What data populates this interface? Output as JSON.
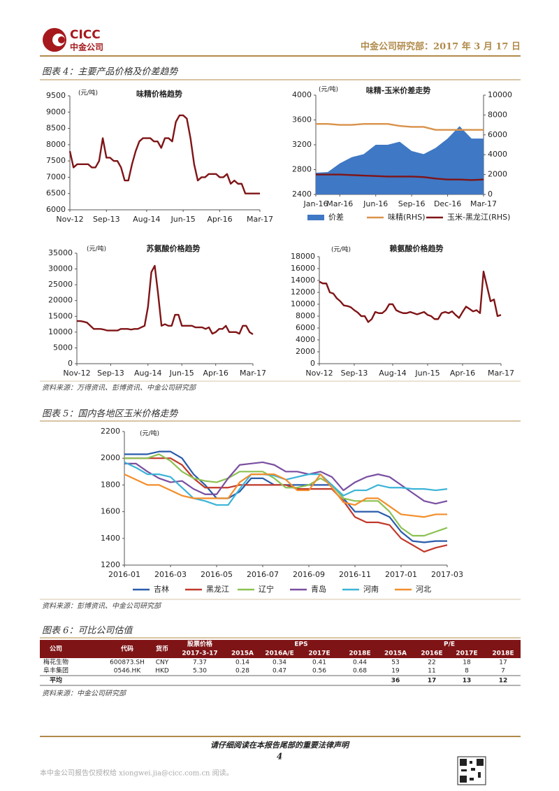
{
  "header": {
    "logo_text": "CICC",
    "logo_cn": "中金公司",
    "date_line": "中金公司研究部：2017 年 3 月 17 日"
  },
  "figure4_title": "图表 4：主要产品价格及价差趋势",
  "figure4_source": "资料来源：万得资讯、彭博资讯、中金公司研究部",
  "figure5_title": "图表 5：国内各地区玉米价格走势",
  "figure5_source": "资料来源：彭博资讯、中金公司研究部",
  "figure6_title": "图表 6：可比公司估值",
  "figure6_source": "资料来源：中金公司研究部",
  "table": {
    "columns": [
      "公司",
      "代码",
      "货币",
      "股票价格",
      "EPS",
      "P/E"
    ],
    "subheader": [
      "2017-3-17",
      "2015A",
      "2016A/E",
      "2017E",
      "2018E",
      "2015A",
      "2016E",
      "2017E",
      "2018E"
    ],
    "rows": [
      [
        "梅花生物",
        "600873.SH",
        "CNY",
        "7.37",
        "0.14",
        "0.34",
        "0.41",
        "0.44",
        "53",
        "22",
        "18",
        "17"
      ],
      [
        "阜丰集团",
        "0546.HK",
        "HKD",
        "5.30",
        "0.28",
        "0.47",
        "0.56",
        "0.68",
        "19",
        "11",
        "8",
        "7"
      ]
    ],
    "average": {
      "label": "平均",
      "values": [
        "36",
        "17",
        "13",
        "12"
      ]
    }
  },
  "footer": {
    "notice": "请仔细阅读在本报告尾部的重要法律声明",
    "page": "4",
    "license": "本中金公司报告仅授权给 xiongwei.jia@cicc.com.cn 阅读。"
  },
  "chart_data": [
    {
      "type": "line",
      "title": "味精价格趋势",
      "unit": "(元/吨)",
      "categories": [
        "Nov-12",
        null,
        null,
        null,
        null,
        null,
        null,
        null,
        null,
        null,
        "Sep-13",
        null,
        null,
        null,
        null,
        null,
        null,
        null,
        null,
        null,
        null,
        "Aug-14",
        null,
        null,
        null,
        null,
        null,
        null,
        null,
        null,
        null,
        "Jun-15",
        null,
        null,
        null,
        null,
        null,
        null,
        null,
        null,
        null,
        "Apr-16",
        null,
        null,
        null,
        null,
        null,
        null,
        null,
        null,
        null,
        null,
        "Mar-17"
      ],
      "series": [
        {
          "name": "味精",
          "color": "#7f1416",
          "values": [
            7800,
            7300,
            7400,
            7400,
            7400,
            7400,
            7300,
            7300,
            7500,
            8200,
            7600,
            7600,
            7500,
            7500,
            7300,
            6900,
            6900,
            7400,
            7800,
            8100,
            8200,
            8200,
            8200,
            8100,
            8100,
            7900,
            8200,
            8200,
            8100,
            8700,
            8900,
            8900,
            8800,
            8200,
            7400,
            6900,
            7000,
            7000,
            7100,
            7100,
            7100,
            7000,
            7000,
            7100,
            6800,
            6900,
            6800,
            6800,
            6500,
            6500,
            6500,
            6500,
            6500
          ]
        }
      ],
      "ylim": [
        6000,
        9500
      ],
      "yticks": [
        6000,
        6500,
        7000,
        7500,
        8000,
        8500,
        9000,
        9500
      ]
    },
    {
      "type": "line",
      "title": "味精-玉米价差走势",
      "unit": "(元/吨)",
      "legend": "bottom",
      "categories": [
        "Jan-16",
        null,
        "Mar-16",
        null,
        null,
        "Jun-16",
        null,
        null,
        "Sep-16",
        null,
        null,
        "Dec-16",
        null,
        null,
        "Mar-17"
      ],
      "series": [
        {
          "name": "价差",
          "type": "area",
          "color": "#3f78c4",
          "values": [
            2750,
            2760,
            2900,
            3000,
            3050,
            3200,
            3200,
            3250,
            3100,
            3050,
            3150,
            3300,
            3500,
            3300,
            3300
          ]
        },
        {
          "name": "味精(RHS)",
          "axis": "y2",
          "color": "#d9924a",
          "values": [
            7100,
            7100,
            7000,
            7000,
            7100,
            7100,
            7100,
            6900,
            6800,
            6800,
            6500,
            6500,
            6500,
            6500,
            6500
          ]
        },
        {
          "name": "玉米-黑龙江(RHS)",
          "axis": "y2",
          "color": "#7f1416",
          "values": [
            2000,
            2000,
            2000,
            1950,
            1900,
            1850,
            1800,
            1800,
            1800,
            1750,
            1600,
            1500,
            1500,
            1450,
            1500
          ]
        }
      ],
      "ylim": [
        2400,
        4000
      ],
      "yticks": [
        2400,
        2800,
        3200,
        3600,
        4000
      ],
      "y2lim": [
        0,
        10000
      ],
      "y2ticks": [
        0,
        2000,
        4000,
        6000,
        8000,
        10000
      ]
    },
    {
      "type": "line",
      "title": "苏氨酸价格趋势",
      "unit": "(元/吨)",
      "categories": [
        "Nov-12",
        null,
        null,
        null,
        null,
        null,
        null,
        null,
        null,
        null,
        "Sep-13",
        null,
        null,
        null,
        null,
        null,
        null,
        null,
        null,
        null,
        null,
        "Aug-14",
        null,
        null,
        null,
        null,
        null,
        null,
        null,
        null,
        null,
        "Jun-15",
        null,
        null,
        null,
        null,
        null,
        null,
        null,
        null,
        null,
        "Apr-16",
        null,
        null,
        null,
        null,
        null,
        null,
        null,
        null,
        null,
        null,
        "Mar-17"
      ],
      "series": [
        {
          "name": "苏氨酸",
          "color": "#7f1416",
          "values": [
            13500,
            13500,
            13300,
            13000,
            12000,
            11000,
            11000,
            11000,
            10800,
            10500,
            10500,
            10500,
            10500,
            11000,
            11000,
            11000,
            10800,
            11000,
            11000,
            11500,
            12000,
            18000,
            29000,
            31000,
            22000,
            12000,
            12500,
            12000,
            12000,
            15500,
            15500,
            12000,
            12000,
            12000,
            12000,
            11500,
            11500,
            11500,
            11000,
            11500,
            9500,
            10000,
            11000,
            11000,
            12000,
            10000,
            10000,
            10000,
            9500,
            12000,
            12000,
            10000,
            9300
          ]
        }
      ],
      "ylim": [
        0,
        35000
      ],
      "yticks": [
        0,
        5000,
        10000,
        15000,
        20000,
        25000,
        30000,
        35000
      ]
    },
    {
      "type": "line",
      "title": "赖氨酸价格趋势",
      "unit": "(元/吨)",
      "categories": [
        "Nov-12",
        null,
        null,
        null,
        null,
        null,
        null,
        null,
        null,
        null,
        "Sep-13",
        null,
        null,
        null,
        null,
        null,
        null,
        null,
        null,
        null,
        null,
        "Aug-14",
        null,
        null,
        null,
        null,
        null,
        null,
        null,
        null,
        null,
        "Jun-15",
        null,
        null,
        null,
        null,
        null,
        null,
        null,
        null,
        null,
        "Apr-16",
        null,
        null,
        null,
        null,
        null,
        null,
        null,
        null,
        null,
        null,
        "Mar-17"
      ],
      "series": [
        {
          "name": "赖氨酸",
          "color": "#7f1416",
          "values": [
            13800,
            13500,
            13500,
            12000,
            11800,
            11000,
            10500,
            9800,
            9700,
            9500,
            9000,
            8600,
            8000,
            8000,
            7000,
            7500,
            8700,
            8500,
            8500,
            9000,
            10000,
            10000,
            9000,
            8700,
            8500,
            8500,
            8700,
            8500,
            8300,
            8500,
            8700,
            8200,
            8000,
            7500,
            7500,
            8500,
            8700,
            8500,
            8800,
            8200,
            7700,
            8700,
            9600,
            9200,
            8800,
            9000,
            8500,
            15500,
            13000,
            10500,
            10800,
            8000,
            8200
          ]
        }
      ],
      "ylim": [
        0,
        18000
      ],
      "yticks": [
        0,
        2000,
        4000,
        6000,
        8000,
        10000,
        12000,
        14000,
        16000,
        18000
      ]
    },
    {
      "type": "line",
      "unit": "(元/吨)",
      "legend": "bottom",
      "categories": [
        "2016-01",
        null,
        null,
        null,
        "2016-03",
        null,
        null,
        null,
        "2016-05",
        null,
        null,
        null,
        "2016-07",
        null,
        null,
        null,
        "2016-09",
        null,
        null,
        null,
        "2016-11",
        null,
        null,
        null,
        "2017-01",
        null,
        null,
        null,
        "2017-03"
      ],
      "series": [
        {
          "name": "吉林",
          "color": "#2a5caa",
          "values": [
            2030,
            2030,
            2030,
            2050,
            2050,
            2000,
            1880,
            1800,
            1700,
            1700,
            1750,
            1850,
            1850,
            1800,
            1800,
            1800,
            1800,
            1800,
            1800,
            1700,
            1600,
            1600,
            1600,
            1560,
            1450,
            1380,
            1370,
            1380,
            1380
          ]
        },
        {
          "name": "黑龙江",
          "color": "#c0392b",
          "values": [
            2000,
            2000,
            2000,
            2000,
            2000,
            1950,
            1850,
            1780,
            1780,
            1780,
            1800,
            1800,
            1800,
            1800,
            1800,
            1770,
            1770,
            1770,
            1770,
            1680,
            1560,
            1520,
            1520,
            1500,
            1400,
            1350,
            1300,
            1330,
            1350
          ]
        },
        {
          "name": "辽宁",
          "color": "#8cc152",
          "values": [
            2000,
            2000,
            2000,
            2030,
            1980,
            1900,
            1850,
            1830,
            1820,
            1850,
            1900,
            1900,
            1900,
            1850,
            1780,
            1780,
            1800,
            1850,
            1800,
            1700,
            1680,
            1680,
            1680,
            1600,
            1480,
            1420,
            1420,
            1450,
            1480
          ]
        },
        {
          "name": "青岛",
          "color": "#7a4fa0",
          "values": [
            1960,
            1960,
            1900,
            1850,
            1820,
            1830,
            1770,
            1730,
            1730,
            1850,
            1950,
            1960,
            1970,
            1950,
            1900,
            1900,
            1880,
            1900,
            1860,
            1760,
            1820,
            1860,
            1880,
            1860,
            1800,
            1740,
            1680,
            1660,
            1680
          ]
        },
        {
          "name": "河南",
          "color": "#3cb4d8",
          "values": [
            1970,
            1930,
            1880,
            1880,
            1860,
            1780,
            1700,
            1680,
            1650,
            1650,
            1770,
            1880,
            1880,
            1870,
            1840,
            1860,
            1880,
            1880,
            1800,
            1720,
            1760,
            1760,
            1800,
            1780,
            1780,
            1770,
            1770,
            1760,
            1770
          ]
        },
        {
          "name": "河北",
          "color": "#f28e2b",
          "values": [
            1880,
            1840,
            1800,
            1800,
            1760,
            1720,
            1700,
            1700,
            1700,
            1700,
            1820,
            1880,
            1880,
            1880,
            1840,
            1760,
            1760,
            1880,
            1780,
            1670,
            1650,
            1700,
            1700,
            1640,
            1580,
            1570,
            1560,
            1580,
            1580
          ]
        }
      ],
      "ylim": [
        1200,
        2200
      ],
      "yticks": [
        1200,
        1400,
        1600,
        1800,
        2000,
        2200
      ]
    }
  ]
}
